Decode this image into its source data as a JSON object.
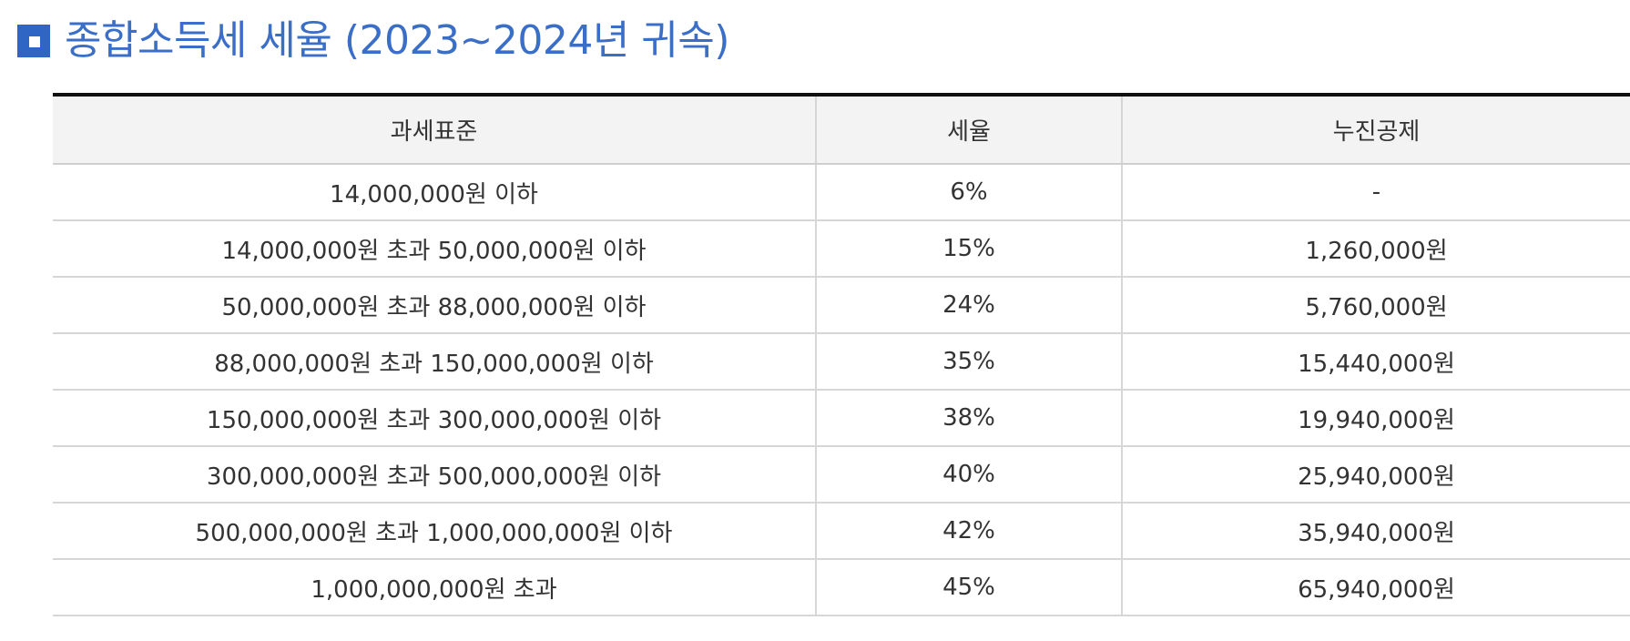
{
  "title": {
    "icon": "square-bullet-icon",
    "text": "종합소득세 세율 (2023~2024년 귀속)",
    "color": "#3b6ec7"
  },
  "table": {
    "headers": [
      "과세표준",
      "세율",
      "누진공제"
    ],
    "rows": [
      {
        "base": "14,000,000원 이하",
        "rate": "6%",
        "deduction": "-"
      },
      {
        "base": "14,000,000원 초과 50,000,000원 이하",
        "rate": "15%",
        "deduction": "1,260,000원"
      },
      {
        "base": "50,000,000원 초과 88,000,000원 이하",
        "rate": "24%",
        "deduction": "5,760,000원"
      },
      {
        "base": "88,000,000원 초과 150,000,000원 이하",
        "rate": "35%",
        "deduction": "15,440,000원"
      },
      {
        "base": "150,000,000원 초과 300,000,000원 이하",
        "rate": "38%",
        "deduction": "19,940,000원"
      },
      {
        "base": "300,000,000원 초과 500,000,000원 이하",
        "rate": "40%",
        "deduction": "25,940,000원"
      },
      {
        "base": "500,000,000원 초과 1,000,000,000원 이하",
        "rate": "42%",
        "deduction": "35,940,000원"
      },
      {
        "base": "1,000,000,000원 초과",
        "rate": "45%",
        "deduction": "65,940,000원"
      }
    ]
  }
}
